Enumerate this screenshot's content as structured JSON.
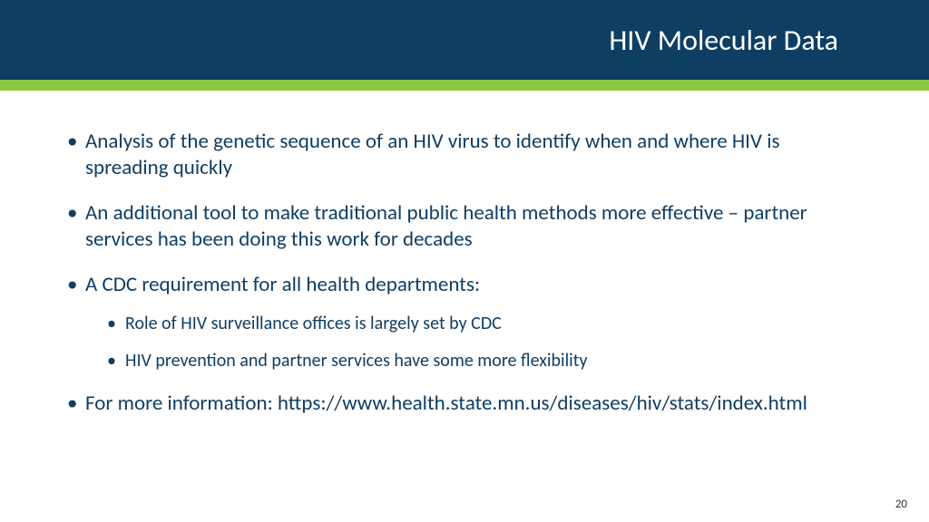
{
  "colors": {
    "header_bg": "#0f3e63",
    "accent_bar": "#8cc63f",
    "text": "#0f3e63",
    "page_bg": "#ffffff",
    "page_number": "#333333"
  },
  "typography": {
    "title_fontsize": 32,
    "bullet_fontsize": 23,
    "sub_bullet_fontsize": 20,
    "page_number_fontsize": 13,
    "font_family": "Calibri"
  },
  "header": {
    "title": "HIV Molecular Data"
  },
  "bullets": [
    {
      "text": "Analysis of the genetic sequence of an HIV virus to identify when and where HIV is spreading quickly"
    },
    {
      "text": "An additional tool to make traditional public health methods more effective – partner services has been doing this work for decades"
    },
    {
      "text": "A CDC requirement for all health departments:",
      "sub": [
        "Role of HIV surveillance offices is largely set by CDC",
        "HIV prevention and partner services have some more flexibility"
      ]
    },
    {
      "text": "For more information: https://www.health.state.mn.us/diseases/hiv/stats/index.html"
    }
  ],
  "page_number": "20"
}
